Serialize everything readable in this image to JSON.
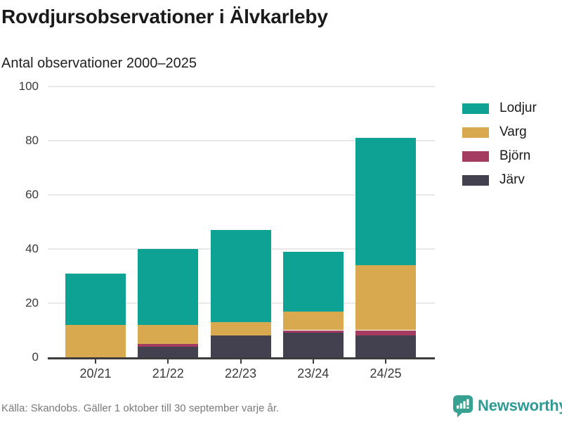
{
  "header": {
    "title": "Rovdjursobservationer i Älvkarleby",
    "subtitle": "Antal observationer 2000–2025"
  },
  "chart_data": {
    "type": "bar",
    "stacked": true,
    "title": "Rovdjursobservationer i Älvkarleby",
    "subtitle": "Antal observationer 2000–2025",
    "categories": [
      "20/21",
      "21/22",
      "22/23",
      "23/24",
      "24/25"
    ],
    "series": [
      {
        "name": "Lodjur",
        "color": "#0da294",
        "values": [
          19,
          28,
          34,
          22,
          47
        ]
      },
      {
        "name": "Varg",
        "color": "#d9a950",
        "values": [
          12,
          7,
          5,
          7,
          24
        ]
      },
      {
        "name": "Björn",
        "color": "#a43c61",
        "values": [
          0,
          1,
          0,
          1,
          2
        ]
      },
      {
        "name": "Järv",
        "color": "#434050",
        "values": [
          0,
          4,
          8,
          9,
          8
        ]
      }
    ],
    "stack_order_bottom_to_top": [
      "Järv",
      "Björn",
      "Varg",
      "Lodjur"
    ],
    "totals": [
      31,
      40,
      47,
      39,
      81
    ],
    "xlabel": "",
    "ylabel": "",
    "ylim": [
      0,
      100
    ],
    "yticks": [
      0,
      20,
      40,
      60,
      80,
      100
    ],
    "grid": true,
    "legend_position": "right"
  },
  "legend": {
    "items": [
      {
        "label": "Lodjur",
        "color": "#0da294"
      },
      {
        "label": "Varg",
        "color": "#d9a950"
      },
      {
        "label": "Björn",
        "color": "#a43c61"
      },
      {
        "label": "Järv",
        "color": "#434050"
      }
    ]
  },
  "footer": {
    "source": "Källa: Skandobs. Gäller 1 oktober till 30 september varje år.",
    "brand": "Newsworthy",
    "brand_color": "#2d9b93"
  },
  "colors": {
    "axis": "#3c3c3c",
    "gridline": "#e9e9e9",
    "title_text": "#1a1a1a",
    "tick_label": "#3a3a3a",
    "source_text": "#7a7a7a",
    "icon_teal": "#38a192"
  }
}
